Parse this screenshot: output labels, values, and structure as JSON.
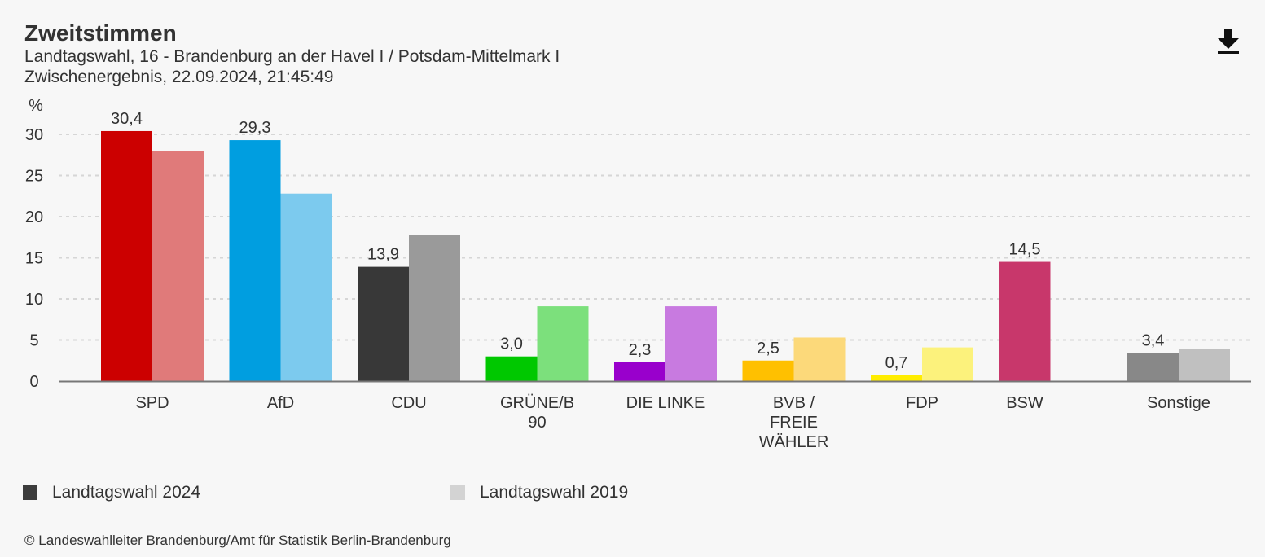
{
  "header": {
    "title": "Zweitstimmen",
    "subtitle1": "Landtagswahl, 16 - Brandenburg an der Havel I / Potsdam-Mittelmark I",
    "subtitle2": "Zwischenergebnis, 22.09.2024, 21:45:49",
    "download_icon": "download-icon"
  },
  "chart_data": {
    "type": "bar",
    "title": "Zweitstimmen",
    "ylabel": "%",
    "xlabel": "",
    "ylim": [
      0,
      30
    ],
    "yticks": [
      0,
      5,
      10,
      15,
      20,
      25,
      30
    ],
    "grid": true,
    "legend_position": "bottom",
    "categories": [
      [
        "SPD"
      ],
      [
        "AfD"
      ],
      [
        "CDU"
      ],
      [
        "GRÜNE/B",
        "90"
      ],
      [
        "DIE LINKE"
      ],
      [
        "BVB /",
        "FREIE",
        "WÄHLER"
      ],
      [
        "FDP"
      ],
      [
        "BSW"
      ],
      [
        "Sonstige"
      ]
    ],
    "series": [
      {
        "name": "Landtagswahl 2024",
        "values": [
          30.4,
          29.3,
          13.9,
          3.0,
          2.3,
          2.5,
          0.7,
          14.5,
          3.4
        ],
        "labels": [
          "30,4",
          "29,3",
          "13,9",
          "3,0",
          "2,3",
          "2,5",
          "0,7",
          "14,5",
          "3,4"
        ],
        "colors": [
          "#cc0000",
          "#009ee0",
          "#383838",
          "#00c800",
          "#9900cc",
          "#ffc000",
          "#ffed00",
          "#c8376b",
          "#888888"
        ]
      },
      {
        "name": "Landtagswahl 2019",
        "values": [
          28.0,
          22.8,
          17.8,
          9.1,
          9.1,
          5.3,
          4.1,
          null,
          3.9
        ],
        "colors": [
          "#e07a7a",
          "#7ccaee",
          "#9a9a9a",
          "#7ce07c",
          "#c87ae0",
          "#fcd97a",
          "#fcf27c",
          null,
          "#c0c0c0"
        ]
      }
    ]
  },
  "legend": [
    {
      "label": "Landtagswahl 2024",
      "color": "#3c3c3c"
    },
    {
      "label": "Landtagswahl 2019",
      "color": "#d3d3d3"
    }
  ],
  "footer": {
    "copyright": "© Landeswahlleiter Brandenburg/Amt für Statistik Berlin-Brandenburg"
  }
}
